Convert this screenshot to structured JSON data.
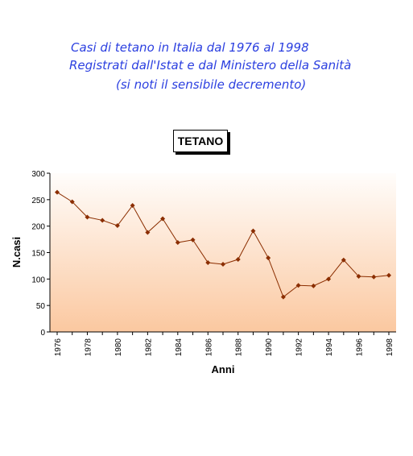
{
  "header": {
    "line1": "Casi di tetano in Italia dal 1976 al 1998",
    "line2": "Registrati dall'Istat e dal Ministero della Sanità",
    "line3": "(si noti il sensibile decremento)"
  },
  "chart_data": {
    "type": "line",
    "title": "TETANO",
    "xlabel": "Anni",
    "ylabel": "N.casi",
    "ylim": [
      0,
      300
    ],
    "yticks": [
      0,
      50,
      100,
      150,
      200,
      250,
      300
    ],
    "xticks": [
      "1976",
      "1978",
      "1980",
      "1982",
      "1984",
      "1986",
      "1988",
      "1990",
      "1992",
      "1994",
      "1996",
      "1998"
    ],
    "x": [
      1976,
      1977,
      1978,
      1979,
      1980,
      1981,
      1982,
      1983,
      1984,
      1985,
      1986,
      1987,
      1988,
      1989,
      1990,
      1991,
      1992,
      1993,
      1994,
      1995,
      1996,
      1997,
      1998
    ],
    "series": [
      {
        "values": [
          264,
          246,
          217,
          211,
          201,
          239,
          188,
          214,
          169,
          174,
          131,
          128,
          137,
          191,
          140,
          66,
          88,
          87,
          100,
          136,
          105,
          104,
          107
        ],
        "color": "#8b2e00"
      }
    ],
    "plot_background_gradient": [
      "#fffdfb",
      "#fbc8a0"
    ],
    "grid": false,
    "legend": "none"
  }
}
